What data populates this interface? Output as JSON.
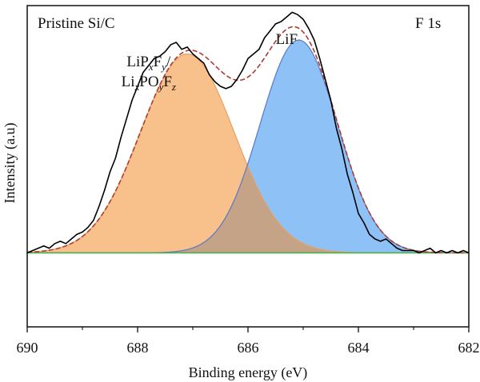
{
  "chart_data": {
    "type": "line",
    "sample_label": "Pristine Si/C",
    "region_label": "F 1s",
    "xlabel": "Binding energy (eV)",
    "ylabel": "Intensity (a.u)",
    "xlim": [
      690,
      682
    ],
    "x_reversed": true,
    "ylim": [
      -0.32,
      1.0
    ],
    "x_ticks": [
      690,
      688,
      686,
      684,
      682
    ],
    "y_ticks_shown": false,
    "grid": false,
    "legend": "none",
    "annotations": [
      {
        "name": "lipf-annotation",
        "x": 687.8,
        "line1": [
          {
            "text": "LiP",
            "style": "normal"
          },
          {
            "text": "x",
            "style": "sub"
          },
          {
            "text": "F",
            "style": "normal"
          },
          {
            "text": "y",
            "style": "sub"
          },
          {
            "text": "/",
            "style": "normal"
          }
        ],
        "line2": [
          {
            "text": "Li",
            "style": "normal"
          },
          {
            "text": "x",
            "style": "sub"
          },
          {
            "text": "PO",
            "style": "normal"
          },
          {
            "text": "y",
            "style": "sub"
          },
          {
            "text": "F",
            "style": "normal"
          },
          {
            "text": "z",
            "style": "sub"
          }
        ]
      },
      {
        "name": "lif-annotation",
        "x": 685.3,
        "line1": [
          {
            "text": "LiF",
            "style": "normal"
          }
        ]
      }
    ],
    "peaks": [
      {
        "label": "LiPxFy/LixPOyFz",
        "center": 687.1,
        "sigma": 0.85,
        "height": 0.86,
        "color": "#f8c08a"
      },
      {
        "label": "LiF",
        "center": 685.08,
        "sigma": 0.7,
        "height": 0.92,
        "color": "#8ec2f7"
      }
    ],
    "overlap_color": "#c4a386",
    "baseline": {
      "y": 0.0,
      "color": "#4caf50"
    },
    "fit_color": "#b03a2e",
    "raw_color": "#000000",
    "raw_data": {
      "x": [
        690.0,
        689.9,
        689.8,
        689.7,
        689.6,
        689.5,
        689.4,
        689.3,
        689.2,
        689.1,
        689.0,
        688.9,
        688.8,
        688.7,
        688.6,
        688.5,
        688.4,
        688.3,
        688.2,
        688.1,
        688.0,
        687.9,
        687.8,
        687.7,
        687.6,
        687.5,
        687.4,
        687.3,
        687.2,
        687.1,
        687.0,
        686.9,
        686.8,
        686.7,
        686.6,
        686.5,
        686.4,
        686.3,
        686.2,
        686.1,
        686.0,
        685.9,
        685.8,
        685.7,
        685.6,
        685.5,
        685.4,
        685.3,
        685.2,
        685.1,
        685.0,
        684.9,
        684.8,
        684.7,
        684.6,
        684.5,
        684.4,
        684.3,
        684.2,
        684.1,
        684.0,
        683.9,
        683.8,
        683.7,
        683.6,
        683.5,
        683.4,
        683.3,
        683.2,
        683.1,
        683.0,
        682.9,
        682.8,
        682.7,
        682.6,
        682.5,
        682.4,
        682.3,
        682.2,
        682.1,
        682.0
      ],
      "y": [
        0.0,
        0.01,
        0.02,
        0.03,
        0.02,
        0.04,
        0.05,
        0.04,
        0.06,
        0.08,
        0.09,
        0.11,
        0.14,
        0.2,
        0.27,
        0.35,
        0.41,
        0.5,
        0.58,
        0.66,
        0.72,
        0.78,
        0.81,
        0.84,
        0.85,
        0.87,
        0.9,
        0.91,
        0.88,
        0.89,
        0.86,
        0.84,
        0.82,
        0.77,
        0.74,
        0.72,
        0.71,
        0.72,
        0.75,
        0.79,
        0.84,
        0.86,
        0.88,
        0.93,
        0.96,
        0.99,
        1.0,
        1.02,
        1.04,
        1.03,
        1.01,
        0.97,
        0.92,
        0.84,
        0.75,
        0.66,
        0.54,
        0.45,
        0.34,
        0.26,
        0.17,
        0.13,
        0.08,
        0.06,
        0.05,
        0.06,
        0.04,
        0.02,
        0.01,
        0.01,
        0.01,
        0.0,
        0.01,
        0.02,
        0.0,
        0.01,
        0.0,
        0.01,
        0.0,
        0.01,
        0.0
      ]
    }
  }
}
